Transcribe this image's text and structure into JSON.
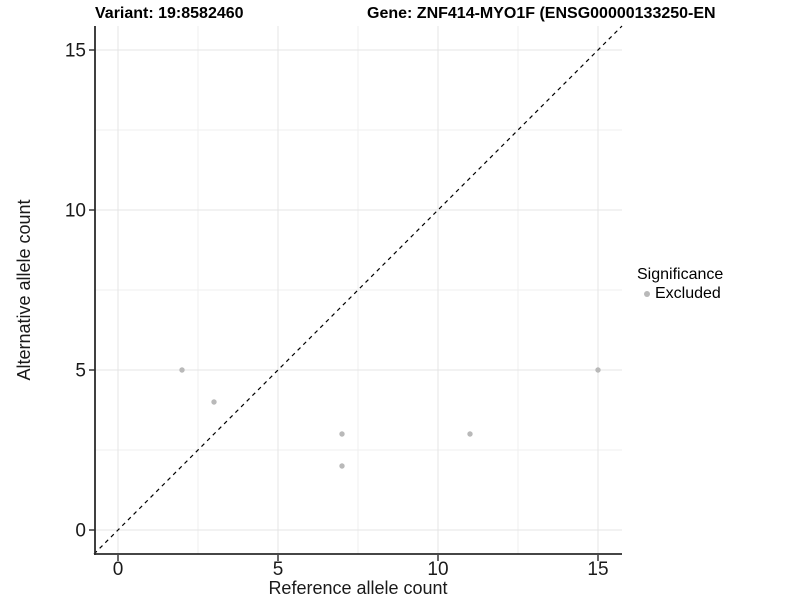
{
  "titles": {
    "left": "Variant: 19:8582460",
    "right": "Gene: ZNF414-MYO1F (ENSG00000133250-EN"
  },
  "legend": {
    "title": "Significance",
    "items": [
      {
        "label": "Excluded",
        "color": "#b9b9b9"
      }
    ]
  },
  "chart_data": {
    "type": "scatter",
    "title_left": "Variant: 19:8582460",
    "title_right": "Gene: ZNF414-MYO1F (ENSG00000133250-EN",
    "xlabel": "Reference allele count",
    "ylabel": "Alternative allele count",
    "xlim": [
      -0.75,
      15.75
    ],
    "ylim": [
      -0.75,
      15.75
    ],
    "x_ticks": [
      0,
      5,
      10,
      15
    ],
    "y_ticks": [
      0,
      5,
      10,
      15
    ],
    "x_minor_ticks": [
      2.5,
      7.5,
      12.5
    ],
    "y_minor_ticks": [
      2.5,
      7.5,
      12.5
    ],
    "grid": true,
    "legend_position": "right",
    "legend_title": "Significance",
    "series": [
      {
        "name": "Excluded",
        "color": "#b9b9b9",
        "points": [
          [
            2,
            5
          ],
          [
            3,
            4
          ],
          [
            7,
            2
          ],
          [
            7,
            3
          ],
          [
            11,
            3
          ],
          [
            15,
            5
          ]
        ]
      }
    ],
    "reference_line": {
      "slope": 1,
      "intercept": 0,
      "style": "dashed",
      "color": "#000000"
    },
    "colors": {
      "grid_major": "#e4e4e4",
      "grid_minor": "#efefef",
      "axis_line": "#2b2b2b",
      "tick_text": "#1a1a1a"
    }
  }
}
